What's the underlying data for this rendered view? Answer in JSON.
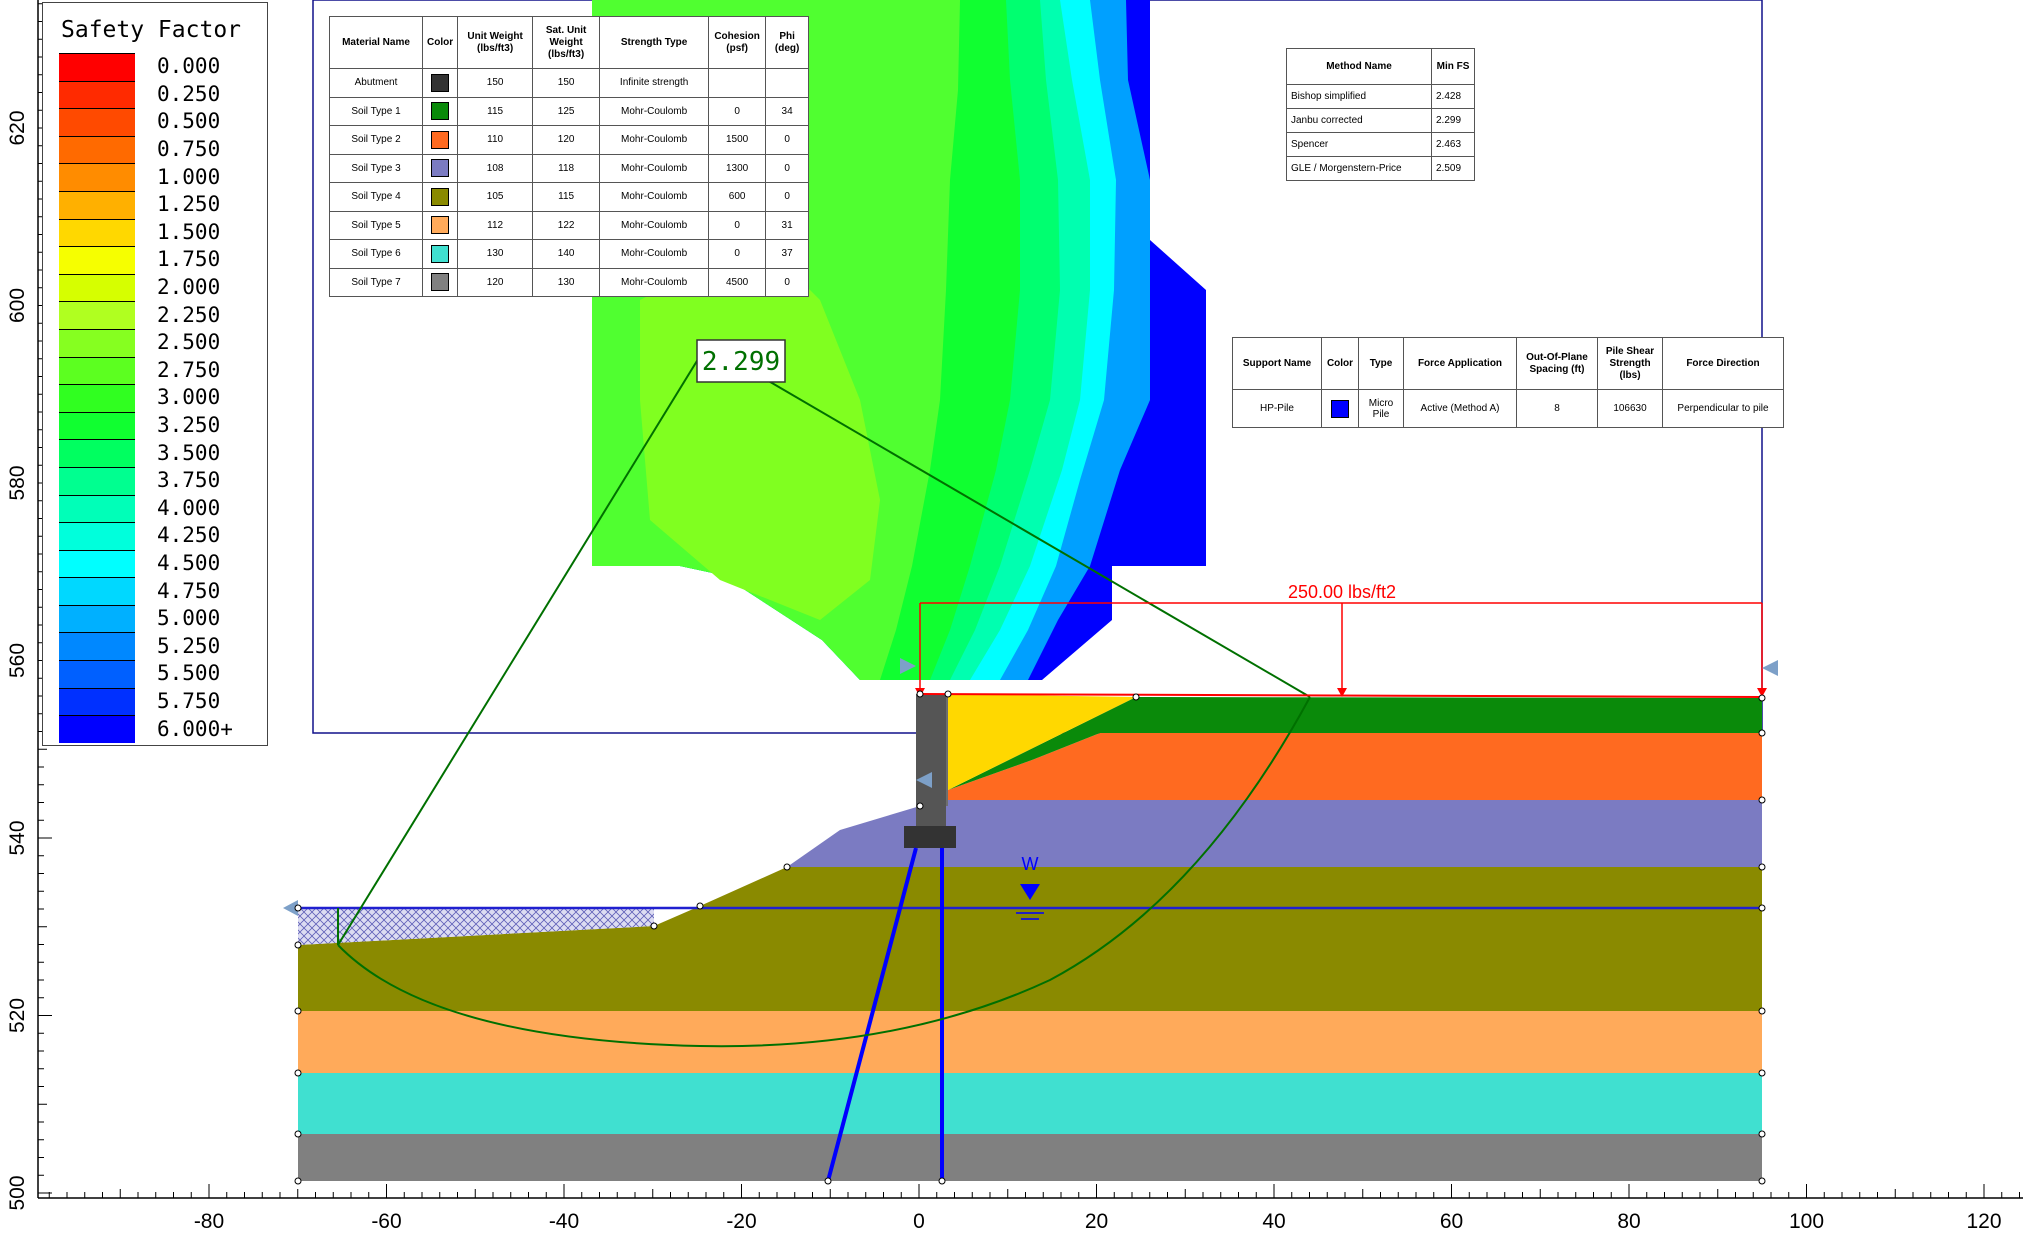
{
  "legend": {
    "title": "Safety Factor",
    "levels": [
      {
        "label": "0.000",
        "color": "#ff0000"
      },
      {
        "label": "0.250",
        "color": "#ff2a00"
      },
      {
        "label": "0.500",
        "color": "#ff4a00"
      },
      {
        "label": "0.750",
        "color": "#ff6a00"
      },
      {
        "label": "1.000",
        "color": "#ff8c00"
      },
      {
        "label": "1.250",
        "color": "#ffb000"
      },
      {
        "label": "1.500",
        "color": "#ffd800"
      },
      {
        "label": "1.750",
        "color": "#f6ff00"
      },
      {
        "label": "2.000",
        "color": "#d6ff00"
      },
      {
        "label": "2.250",
        "color": "#b0ff20"
      },
      {
        "label": "2.500",
        "color": "#86ff20"
      },
      {
        "label": "2.750",
        "color": "#5cff20"
      },
      {
        "label": "3.000",
        "color": "#30ff20"
      },
      {
        "label": "3.250",
        "color": "#10ff30"
      },
      {
        "label": "3.500",
        "color": "#00ff60"
      },
      {
        "label": "3.750",
        "color": "#00ff90"
      },
      {
        "label": "4.000",
        "color": "#00ffb8"
      },
      {
        "label": "4.250",
        "color": "#00ffdc"
      },
      {
        "label": "4.500",
        "color": "#00ffff"
      },
      {
        "label": "4.750",
        "color": "#00d8ff"
      },
      {
        "label": "5.000",
        "color": "#00b0ff"
      },
      {
        "label": "5.250",
        "color": "#0088ff"
      },
      {
        "label": "5.500",
        "color": "#0060ff"
      },
      {
        "label": "5.750",
        "color": "#0030ff"
      },
      {
        "label": "6.000+",
        "color": "#0000ff"
      }
    ]
  },
  "axes": {
    "x_ticks": [
      "-80",
      "-60",
      "-40",
      "-20",
      "0",
      "20",
      "40",
      "60",
      "80",
      "100",
      "120"
    ],
    "y_ticks": [
      "620",
      "600",
      "580",
      "560",
      "540",
      "520",
      "500"
    ]
  },
  "materials": {
    "headers": [
      "Material Name",
      "Color",
      "Unit Weight (lbs/ft3)",
      "Sat. Unit Weight (lbs/ft3)",
      "Strength Type",
      "Cohesion (psf)",
      "Phi (deg)"
    ],
    "rows": [
      {
        "name": "Abutment",
        "color": "#333333",
        "uw": "150",
        "suw": "150",
        "type": "Infinite strength",
        "c": "",
        "phi": ""
      },
      {
        "name": "Soil Type 1",
        "color": "#0a8a0a",
        "uw": "115",
        "suw": "125",
        "type": "Mohr-Coulomb",
        "c": "0",
        "phi": "34"
      },
      {
        "name": "Soil Type 2",
        "color": "#ff6a20",
        "uw": "110",
        "suw": "120",
        "type": "Mohr-Coulomb",
        "c": "1500",
        "phi": "0"
      },
      {
        "name": "Soil Type 3",
        "color": "#7b7bc2",
        "uw": "108",
        "suw": "118",
        "type": "Mohr-Coulomb",
        "c": "1300",
        "phi": "0"
      },
      {
        "name": "Soil Type 4",
        "color": "#8a8a00",
        "uw": "105",
        "suw": "115",
        "type": "Mohr-Coulomb",
        "c": "600",
        "phi": "0"
      },
      {
        "name": "Soil Type 5",
        "color": "#ffaa5a",
        "uw": "112",
        "suw": "122",
        "type": "Mohr-Coulomb",
        "c": "0",
        "phi": "31"
      },
      {
        "name": "Soil Type 6",
        "color": "#40e0d0",
        "uw": "130",
        "suw": "140",
        "type": "Mohr-Coulomb",
        "c": "0",
        "phi": "37"
      },
      {
        "name": "Soil Type 7",
        "color": "#808080",
        "uw": "120",
        "suw": "130",
        "type": "Mohr-Coulomb",
        "c": "4500",
        "phi": "0"
      }
    ]
  },
  "methods": {
    "headers": [
      "Method Name",
      "Min FS"
    ],
    "rows": [
      {
        "name": "Bishop simplified",
        "fs": "2.428"
      },
      {
        "name": "Janbu corrected",
        "fs": "2.299"
      },
      {
        "name": "Spencer",
        "fs": "2.463"
      },
      {
        "name": "GLE / Morgenstern-Price",
        "fs": "2.509"
      }
    ]
  },
  "support": {
    "headers": [
      "Support Name",
      "Color",
      "Type",
      "Force Application",
      "Out-Of-Plane Spacing (ft)",
      "Pile Shear Strength (lbs)",
      "Force Direction"
    ],
    "row": {
      "name": "HP-Pile",
      "color": "#0000ff",
      "type": "Micro Pile",
      "force_application": "Active (Method A)",
      "spacing": "8",
      "shear": "106630",
      "direction": "Perpendicular to pile"
    }
  },
  "annotations": {
    "min_fs": "2.299",
    "load_label": "250.00 lbs/ft2",
    "water_label": "W"
  }
}
